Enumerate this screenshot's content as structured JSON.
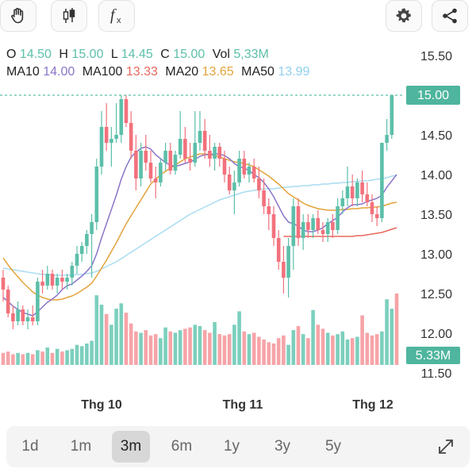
{
  "toolbar": {
    "left_icons": [
      "hand-icon",
      "candlestick-icon",
      "function-icon"
    ],
    "right_icons": [
      "gear-icon",
      "share-icon"
    ]
  },
  "ohlc": {
    "o_label": "O",
    "o_value": "14.50",
    "h_label": "H",
    "h_value": "15.00",
    "l_label": "L",
    "l_value": "14.45",
    "c_label": "C",
    "c_value": "15.00",
    "vol_label": "Vol",
    "vol_value": "5,33M"
  },
  "indicators": {
    "ma10_label": "MA10",
    "ma10_value": "14.00",
    "ma100_label": "MA100",
    "ma100_value": "13.33",
    "ma20_label": "MA20",
    "ma20_value": "13.65",
    "ma50_label": "MA50",
    "ma50_value": "13.99"
  },
  "colors": {
    "up": "#5cbfa9",
    "down": "#f2717c",
    "vol_up": "#7ccfbd",
    "vol_down": "#f6a4a8",
    "ma10": "#8a75c9",
    "ma20": "#e3a33a",
    "ma50": "#a9dcf2",
    "ma100": "#e8685c"
  },
  "chart_data": {
    "type": "candlestick",
    "y_ticks": [
      "15.50",
      "15.00",
      "14.50",
      "14.00",
      "13.50",
      "13.00",
      "12.50",
      "12.00",
      "11.50"
    ],
    "x_labels": [
      "Thg 10",
      "Thg 11",
      "Thg 12"
    ],
    "ylim": [
      11.5,
      15.5
    ],
    "last_price_label": "15.00",
    "last_volume_label": "5.33M",
    "candles": [
      {
        "o": 12.7,
        "h": 12.8,
        "l": 12.4,
        "c": 12.55
      },
      {
        "o": 12.55,
        "h": 12.6,
        "l": 12.2,
        "c": 12.25
      },
      {
        "o": 12.25,
        "h": 12.35,
        "l": 12.05,
        "c": 12.15
      },
      {
        "o": 12.15,
        "h": 12.4,
        "l": 12.1,
        "c": 12.3
      },
      {
        "o": 12.3,
        "h": 12.35,
        "l": 12.1,
        "c": 12.15
      },
      {
        "o": 12.15,
        "h": 12.3,
        "l": 12.05,
        "c": 12.2
      },
      {
        "o": 12.2,
        "h": 12.35,
        "l": 12.1,
        "c": 12.15
      },
      {
        "o": 12.15,
        "h": 12.7,
        "l": 12.1,
        "c": 12.65
      },
      {
        "o": 12.65,
        "h": 12.8,
        "l": 12.5,
        "c": 12.6
      },
      {
        "o": 12.6,
        "h": 12.85,
        "l": 12.55,
        "c": 12.75
      },
      {
        "o": 12.75,
        "h": 12.8,
        "l": 12.55,
        "c": 12.6
      },
      {
        "o": 12.6,
        "h": 12.75,
        "l": 12.5,
        "c": 12.7
      },
      {
        "o": 12.7,
        "h": 12.8,
        "l": 12.55,
        "c": 12.65
      },
      {
        "o": 12.65,
        "h": 12.75,
        "l": 12.55,
        "c": 12.7
      },
      {
        "o": 12.7,
        "h": 12.9,
        "l": 12.6,
        "c": 12.85
      },
      {
        "o": 12.85,
        "h": 13.1,
        "l": 12.75,
        "c": 13.0
      },
      {
        "o": 13.0,
        "h": 13.15,
        "l": 12.9,
        "c": 13.1
      },
      {
        "o": 13.1,
        "h": 13.3,
        "l": 13.0,
        "c": 13.25
      },
      {
        "o": 13.25,
        "h": 13.5,
        "l": 12.7,
        "c": 13.4
      },
      {
        "o": 13.4,
        "h": 14.2,
        "l": 13.3,
        "c": 14.1
      },
      {
        "o": 14.1,
        "h": 14.8,
        "l": 14.0,
        "c": 14.6
      },
      {
        "o": 14.6,
        "h": 14.9,
        "l": 14.3,
        "c": 14.4
      },
      {
        "o": 14.4,
        "h": 14.6,
        "l": 14.1,
        "c": 14.45
      },
      {
        "o": 14.45,
        "h": 14.9,
        "l": 14.4,
        "c": 14.5
      },
      {
        "o": 14.5,
        "h": 15.0,
        "l": 14.4,
        "c": 14.95
      },
      {
        "o": 14.95,
        "h": 15.0,
        "l": 14.6,
        "c": 14.65
      },
      {
        "o": 14.65,
        "h": 14.8,
        "l": 14.2,
        "c": 14.3
      },
      {
        "o": 14.3,
        "h": 14.5,
        "l": 13.8,
        "c": 13.95
      },
      {
        "o": 13.95,
        "h": 14.4,
        "l": 13.85,
        "c": 14.3
      },
      {
        "o": 14.3,
        "h": 14.5,
        "l": 14.05,
        "c": 14.15
      },
      {
        "o": 14.15,
        "h": 14.3,
        "l": 13.9,
        "c": 13.95
      },
      {
        "o": 13.95,
        "h": 14.1,
        "l": 13.7,
        "c": 13.9
      },
      {
        "o": 13.9,
        "h": 14.2,
        "l": 13.85,
        "c": 14.15
      },
      {
        "o": 14.15,
        "h": 14.4,
        "l": 14.05,
        "c": 14.3
      },
      {
        "o": 14.3,
        "h": 14.4,
        "l": 14.0,
        "c": 14.05
      },
      {
        "o": 14.05,
        "h": 14.3,
        "l": 14.0,
        "c": 14.25
      },
      {
        "o": 14.25,
        "h": 14.8,
        "l": 14.2,
        "c": 14.45
      },
      {
        "o": 14.45,
        "h": 14.6,
        "l": 14.15,
        "c": 14.2
      },
      {
        "o": 14.2,
        "h": 14.4,
        "l": 14.05,
        "c": 14.15
      },
      {
        "o": 14.15,
        "h": 14.8,
        "l": 14.1,
        "c": 14.4
      },
      {
        "o": 14.4,
        "h": 14.8,
        "l": 14.3,
        "c": 14.55
      },
      {
        "o": 14.55,
        "h": 14.7,
        "l": 14.2,
        "c": 14.3
      },
      {
        "o": 14.3,
        "h": 14.5,
        "l": 14.1,
        "c": 14.2
      },
      {
        "o": 14.2,
        "h": 14.4,
        "l": 14.05,
        "c": 14.35
      },
      {
        "o": 14.35,
        "h": 14.4,
        "l": 14.1,
        "c": 14.2
      },
      {
        "o": 14.2,
        "h": 14.3,
        "l": 13.9,
        "c": 14.0
      },
      {
        "o": 14.0,
        "h": 14.1,
        "l": 13.75,
        "c": 13.8
      },
      {
        "o": 13.8,
        "h": 14.05,
        "l": 13.5,
        "c": 13.9
      },
      {
        "o": 13.9,
        "h": 14.3,
        "l": 13.85,
        "c": 14.2
      },
      {
        "o": 14.2,
        "h": 14.3,
        "l": 13.95,
        "c": 14.0
      },
      {
        "o": 14.0,
        "h": 14.15,
        "l": 13.9,
        "c": 14.1
      },
      {
        "o": 14.1,
        "h": 14.2,
        "l": 13.9,
        "c": 13.95
      },
      {
        "o": 13.95,
        "h": 14.1,
        "l": 13.7,
        "c": 13.8
      },
      {
        "o": 13.8,
        "h": 13.95,
        "l": 13.5,
        "c": 13.6
      },
      {
        "o": 13.6,
        "h": 13.7,
        "l": 13.3,
        "c": 13.5
      },
      {
        "o": 13.5,
        "h": 13.6,
        "l": 13.1,
        "c": 13.2
      },
      {
        "o": 13.2,
        "h": 13.3,
        "l": 12.8,
        "c": 12.9
      },
      {
        "o": 12.9,
        "h": 13.1,
        "l": 12.5,
        "c": 12.7
      },
      {
        "o": 12.7,
        "h": 13.2,
        "l": 12.45,
        "c": 13.1
      },
      {
        "o": 13.1,
        "h": 13.7,
        "l": 12.8,
        "c": 13.6
      },
      {
        "o": 13.6,
        "h": 13.7,
        "l": 13.1,
        "c": 13.2
      },
      {
        "o": 13.2,
        "h": 13.5,
        "l": 13.05,
        "c": 13.4
      },
      {
        "o": 13.4,
        "h": 13.5,
        "l": 13.2,
        "c": 13.3
      },
      {
        "o": 13.3,
        "h": 13.5,
        "l": 13.2,
        "c": 13.45
      },
      {
        "o": 13.45,
        "h": 13.55,
        "l": 13.25,
        "c": 13.3
      },
      {
        "o": 13.3,
        "h": 13.4,
        "l": 13.15,
        "c": 13.25
      },
      {
        "o": 13.25,
        "h": 13.45,
        "l": 13.15,
        "c": 13.4
      },
      {
        "o": 13.4,
        "h": 13.5,
        "l": 13.2,
        "c": 13.3
      },
      {
        "o": 13.3,
        "h": 13.7,
        "l": 13.25,
        "c": 13.6
      },
      {
        "o": 13.6,
        "h": 13.8,
        "l": 13.5,
        "c": 13.7
      },
      {
        "o": 13.7,
        "h": 14.1,
        "l": 13.6,
        "c": 13.85
      },
      {
        "o": 13.85,
        "h": 14.0,
        "l": 13.6,
        "c": 13.7
      },
      {
        "o": 13.7,
        "h": 13.95,
        "l": 13.6,
        "c": 13.9
      },
      {
        "o": 13.9,
        "h": 14.05,
        "l": 13.65,
        "c": 13.75
      },
      {
        "o": 13.75,
        "h": 13.9,
        "l": 13.6,
        "c": 13.65
      },
      {
        "o": 13.65,
        "h": 13.75,
        "l": 13.4,
        "c": 13.5
      },
      {
        "o": 13.5,
        "h": 13.6,
        "l": 13.35,
        "c": 13.45
      },
      {
        "o": 13.45,
        "h": 14.4,
        "l": 13.4,
        "c": 14.4
      },
      {
        "o": 14.4,
        "h": 14.7,
        "l": 14.3,
        "c": 14.5
      },
      {
        "o": 14.5,
        "h": 15.0,
        "l": 14.45,
        "c": 15.0
      }
    ],
    "volume": [
      0.9,
      1.0,
      0.8,
      0.9,
      0.8,
      0.9,
      0.8,
      1.1,
      1.0,
      1.3,
      0.9,
      1.2,
      1.0,
      1.1,
      1.2,
      1.5,
      1.4,
      1.6,
      1.8,
      5.2,
      4.5,
      3.8,
      3.0,
      4.2,
      4.6,
      3.9,
      3.1,
      2.5,
      2.4,
      2.6,
      2.2,
      2.3,
      2.0,
      2.8,
      2.5,
      2.4,
      2.6,
      2.7,
      2.8,
      3.0,
      2.9,
      2.6,
      2.4,
      3.2,
      2.3,
      2.2,
      2.3,
      3.0,
      4.0,
      2.5,
      2.3,
      2.4,
      2.1,
      1.9,
      1.7,
      1.6,
      2.0,
      2.2,
      1.5,
      2.6,
      2.9,
      2.3,
      2.0,
      4.1,
      3.0,
      2.7,
      2.4,
      2.2,
      2.3,
      2.5,
      1.9,
      2.0,
      2.1,
      3.7,
      2.4,
      2.2,
      2.3,
      2.5,
      4.9,
      4.2,
      5.33
    ],
    "ma10": [
      12.45,
      12.4,
      12.34,
      12.3,
      12.26,
      12.24,
      12.22,
      12.27,
      12.33,
      12.39,
      12.43,
      12.48,
      12.55,
      12.6,
      12.62,
      12.67,
      12.72,
      12.78,
      12.85,
      13.0,
      13.2,
      13.38,
      13.56,
      13.74,
      13.94,
      14.1,
      14.22,
      14.28,
      14.33,
      14.35,
      14.32,
      14.25,
      14.2,
      14.15,
      14.12,
      14.1,
      14.12,
      14.14,
      14.16,
      14.19,
      14.23,
      14.25,
      14.25,
      14.26,
      14.26,
      14.24,
      14.2,
      14.14,
      14.1,
      14.08,
      14.05,
      14.0,
      13.96,
      13.9,
      13.82,
      13.72,
      13.6,
      13.48,
      13.4,
      13.38,
      13.35,
      13.3,
      13.28,
      13.28,
      13.3,
      13.33,
      13.38,
      13.42,
      13.46,
      13.53,
      13.58,
      13.62,
      13.62,
      13.63,
      13.66,
      13.68,
      13.7,
      13.74,
      13.84,
      13.92,
      14.0
    ],
    "ma20": [
      12.95,
      12.86,
      12.78,
      12.71,
      12.64,
      12.58,
      12.52,
      12.48,
      12.45,
      12.43,
      12.42,
      12.42,
      12.43,
      12.45,
      12.47,
      12.5,
      12.54,
      12.58,
      12.63,
      12.72,
      12.82,
      12.92,
      13.03,
      13.14,
      13.26,
      13.38,
      13.48,
      13.58,
      13.68,
      13.78,
      13.88,
      13.94,
      14.0,
      14.04,
      14.08,
      14.12,
      14.16,
      14.2,
      14.22,
      14.24,
      14.26,
      14.26,
      14.25,
      14.24,
      14.22,
      14.2,
      14.18,
      14.16,
      14.15,
      14.14,
      14.12,
      14.1,
      14.06,
      14.02,
      13.98,
      13.93,
      13.88,
      13.82,
      13.76,
      13.72,
      13.68,
      13.64,
      13.61,
      13.59,
      13.57,
      13.56,
      13.55,
      13.55,
      13.55,
      13.56,
      13.56,
      13.57,
      13.57,
      13.58,
      13.58,
      13.59,
      13.59,
      13.6,
      13.62,
      13.64,
      13.65
    ],
    "ma50": [
      12.82,
      12.81,
      12.8,
      12.79,
      12.78,
      12.77,
      12.76,
      12.75,
      12.74,
      12.74,
      12.73,
      12.73,
      12.73,
      12.73,
      12.73,
      12.74,
      12.74,
      12.75,
      12.76,
      12.78,
      12.81,
      12.84,
      12.87,
      12.9,
      12.94,
      12.98,
      13.02,
      13.06,
      13.1,
      13.14,
      13.18,
      13.22,
      13.26,
      13.3,
      13.34,
      13.38,
      13.42,
      13.46,
      13.5,
      13.53,
      13.56,
      13.59,
      13.62,
      13.65,
      13.68,
      13.7,
      13.72,
      13.74,
      13.76,
      13.78,
      13.79,
      13.8,
      13.81,
      13.82,
      13.82,
      13.82,
      13.83,
      13.84,
      13.84,
      13.85,
      13.85,
      13.86,
      13.86,
      13.87,
      13.87,
      13.88,
      13.88,
      13.89,
      13.89,
      13.9,
      13.9,
      13.91,
      13.91,
      13.92,
      13.92,
      13.93,
      13.94,
      13.95,
      13.96,
      13.98,
      13.99
    ],
    "ma100": [
      null,
      null,
      null,
      null,
      null,
      null,
      null,
      null,
      null,
      null,
      null,
      null,
      null,
      null,
      null,
      null,
      null,
      null,
      null,
      null,
      null,
      null,
      null,
      null,
      null,
      null,
      null,
      null,
      null,
      null,
      null,
      null,
      null,
      null,
      null,
      null,
      null,
      null,
      null,
      null,
      null,
      null,
      null,
      null,
      null,
      null,
      null,
      null,
      null,
      null,
      null,
      null,
      null,
      null,
      null,
      null,
      null,
      13.22,
      13.22,
      13.22,
      13.22,
      13.22,
      13.22,
      13.22,
      13.22,
      13.22,
      13.22,
      13.22,
      13.22,
      13.22,
      13.22,
      13.22,
      13.23,
      13.23,
      13.24,
      13.25,
      13.26,
      13.27,
      13.29,
      13.31,
      13.33
    ]
  },
  "ranges": [
    {
      "label": "1d",
      "active": false
    },
    {
      "label": "1m",
      "active": false
    },
    {
      "label": "3m",
      "active": true
    },
    {
      "label": "6m",
      "active": false
    },
    {
      "label": "1y",
      "active": false
    },
    {
      "label": "3y",
      "active": false
    },
    {
      "label": "5y",
      "active": false
    }
  ]
}
